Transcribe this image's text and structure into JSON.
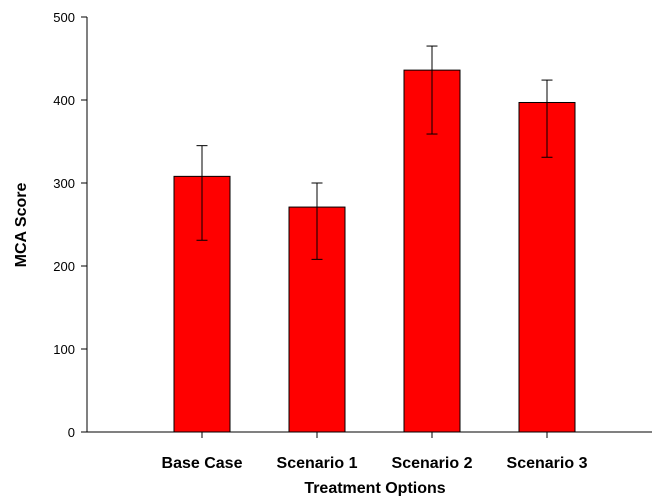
{
  "chart_data": {
    "type": "bar",
    "categories": [
      "Base Case",
      "Scenario 1",
      "Scenario 2",
      "Scenario 3"
    ],
    "values": [
      308,
      271,
      436,
      397
    ],
    "error_low": [
      231,
      208,
      359,
      331
    ],
    "error_high": [
      345,
      300,
      465,
      424
    ],
    "xlabel": "Treatment Options",
    "ylabel": "MCA Score",
    "ylim": [
      0,
      500
    ],
    "yticks": [
      0,
      100,
      200,
      300,
      400,
      500
    ],
    "bar_color": "#ff0000",
    "grid": false,
    "legend": "none"
  }
}
